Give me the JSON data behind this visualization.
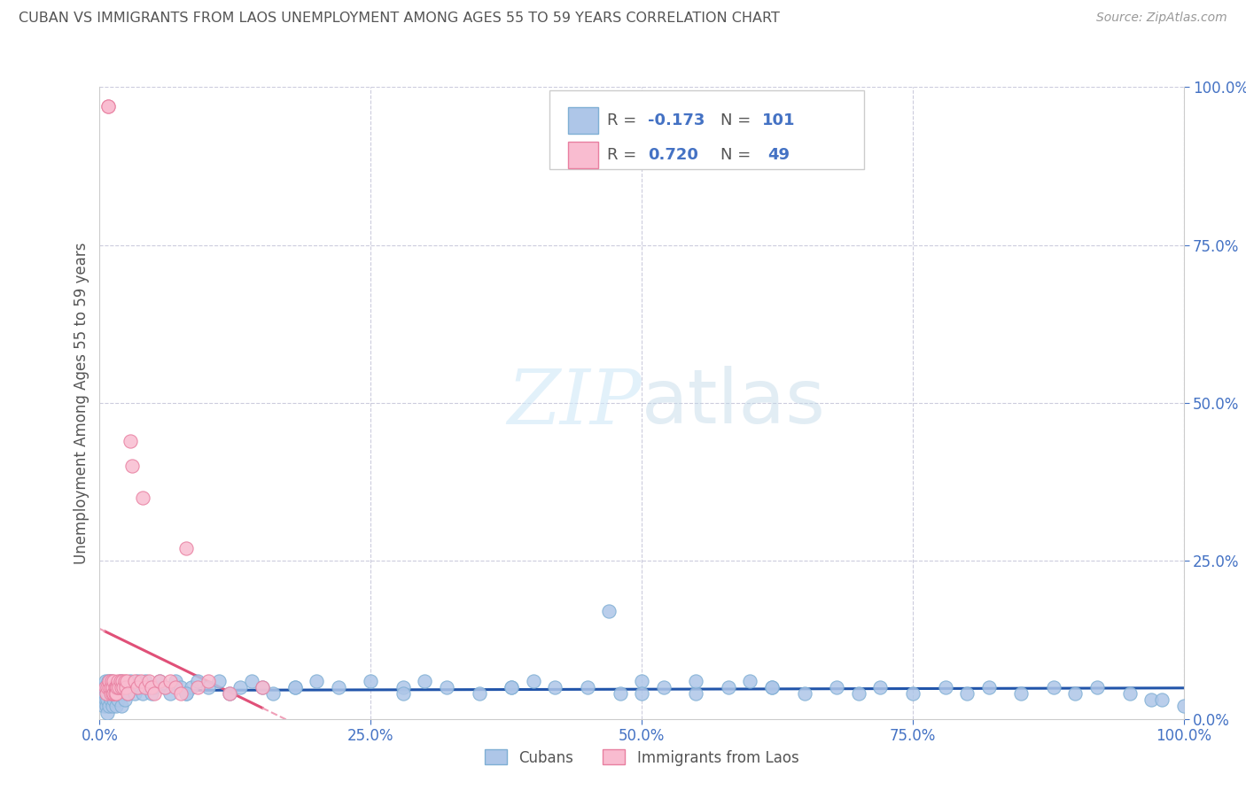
{
  "title": "CUBAN VS IMMIGRANTS FROM LAOS UNEMPLOYMENT AMONG AGES 55 TO 59 YEARS CORRELATION CHART",
  "source": "Source: ZipAtlas.com",
  "ylabel": "Unemployment Among Ages 55 to 59 years",
  "xlim": [
    0,
    1
  ],
  "ylim": [
    0,
    1
  ],
  "xticks": [
    0.0,
    0.25,
    0.5,
    0.75,
    1.0
  ],
  "yticks": [
    0.0,
    0.25,
    0.5,
    0.75,
    1.0
  ],
  "xticklabels": [
    "0.0%",
    "25.0%",
    "50.0%",
    "75.0%",
    "100.0%"
  ],
  "yticklabels": [
    "0.0%",
    "25.0%",
    "50.0%",
    "75.0%",
    "100.0%"
  ],
  "watermark_zip": "ZIP",
  "watermark_atlas": "atlas",
  "title_color": "#555555",
  "axis_label_color": "#555555",
  "tick_color": "#4472c4",
  "grid_color": "#ddddee",
  "background_color": "#ffffff",
  "cubans": {
    "name": "Cubans",
    "R": "-0.173",
    "N": "101",
    "dot_color": "#aec6e8",
    "dot_edge": "#7fafd4",
    "line_color": "#2255aa",
    "x": [
      0.002,
      0.003,
      0.004,
      0.004,
      0.005,
      0.005,
      0.006,
      0.006,
      0.007,
      0.007,
      0.007,
      0.008,
      0.008,
      0.009,
      0.009,
      0.01,
      0.01,
      0.011,
      0.012,
      0.012,
      0.013,
      0.014,
      0.015,
      0.016,
      0.017,
      0.018,
      0.019,
      0.02,
      0.02,
      0.022,
      0.023,
      0.025,
      0.026,
      0.028,
      0.03,
      0.032,
      0.035,
      0.038,
      0.04,
      0.042,
      0.045,
      0.048,
      0.05,
      0.055,
      0.06,
      0.065,
      0.07,
      0.075,
      0.08,
      0.085,
      0.09,
      0.1,
      0.11,
      0.12,
      0.13,
      0.14,
      0.15,
      0.16,
      0.18,
      0.2,
      0.22,
      0.25,
      0.28,
      0.3,
      0.32,
      0.35,
      0.38,
      0.4,
      0.42,
      0.45,
      0.48,
      0.5,
      0.52,
      0.55,
      0.58,
      0.6,
      0.62,
      0.65,
      0.68,
      0.7,
      0.72,
      0.75,
      0.78,
      0.8,
      0.82,
      0.85,
      0.88,
      0.9,
      0.92,
      0.95,
      0.97,
      0.98,
      1.0,
      0.47,
      0.55,
      0.62,
      0.5,
      0.38,
      0.28,
      0.18,
      0.08
    ],
    "y": [
      0.03,
      0.04,
      0.02,
      0.05,
      0.03,
      0.06,
      0.04,
      0.02,
      0.05,
      0.03,
      0.01,
      0.04,
      0.06,
      0.02,
      0.05,
      0.03,
      0.06,
      0.04,
      0.02,
      0.05,
      0.03,
      0.04,
      0.02,
      0.05,
      0.03,
      0.04,
      0.06,
      0.02,
      0.05,
      0.04,
      0.03,
      0.05,
      0.04,
      0.06,
      0.05,
      0.04,
      0.06,
      0.05,
      0.04,
      0.06,
      0.05,
      0.04,
      0.05,
      0.06,
      0.05,
      0.04,
      0.06,
      0.05,
      0.04,
      0.05,
      0.06,
      0.05,
      0.06,
      0.04,
      0.05,
      0.06,
      0.05,
      0.04,
      0.05,
      0.06,
      0.05,
      0.06,
      0.05,
      0.06,
      0.05,
      0.04,
      0.05,
      0.06,
      0.05,
      0.05,
      0.04,
      0.06,
      0.05,
      0.04,
      0.05,
      0.06,
      0.05,
      0.04,
      0.05,
      0.04,
      0.05,
      0.04,
      0.05,
      0.04,
      0.05,
      0.04,
      0.05,
      0.04,
      0.05,
      0.04,
      0.03,
      0.03,
      0.02,
      0.17,
      0.06,
      0.05,
      0.04,
      0.05,
      0.04,
      0.05,
      0.04
    ]
  },
  "laos": {
    "name": "Immigrants from Laos",
    "R": "0.720",
    "N": "49",
    "dot_color": "#f9bcd0",
    "dot_edge": "#e87fa0",
    "line_color": "#e05078",
    "line_dash_color": "#f0a0b8",
    "x": [
      0.005,
      0.006,
      0.007,
      0.008,
      0.008,
      0.009,
      0.009,
      0.01,
      0.01,
      0.011,
      0.012,
      0.012,
      0.013,
      0.013,
      0.014,
      0.014,
      0.015,
      0.015,
      0.016,
      0.017,
      0.018,
      0.019,
      0.02,
      0.021,
      0.022,
      0.023,
      0.024,
      0.025,
      0.026,
      0.028,
      0.03,
      0.032,
      0.035,
      0.038,
      0.04,
      0.042,
      0.045,
      0.048,
      0.05,
      0.055,
      0.06,
      0.065,
      0.07,
      0.075,
      0.08,
      0.09,
      0.1,
      0.12,
      0.15
    ],
    "y": [
      0.05,
      0.04,
      0.05,
      0.97,
      0.97,
      0.05,
      0.06,
      0.04,
      0.05,
      0.06,
      0.04,
      0.05,
      0.06,
      0.04,
      0.05,
      0.04,
      0.05,
      0.04,
      0.05,
      0.06,
      0.05,
      0.06,
      0.05,
      0.06,
      0.05,
      0.06,
      0.05,
      0.06,
      0.04,
      0.44,
      0.4,
      0.06,
      0.05,
      0.06,
      0.35,
      0.05,
      0.06,
      0.05,
      0.04,
      0.06,
      0.05,
      0.06,
      0.05,
      0.04,
      0.27,
      0.05,
      0.06,
      0.04,
      0.05
    ]
  },
  "legend_R_color": "#4472c4",
  "legend_N_color": "#4472c4"
}
